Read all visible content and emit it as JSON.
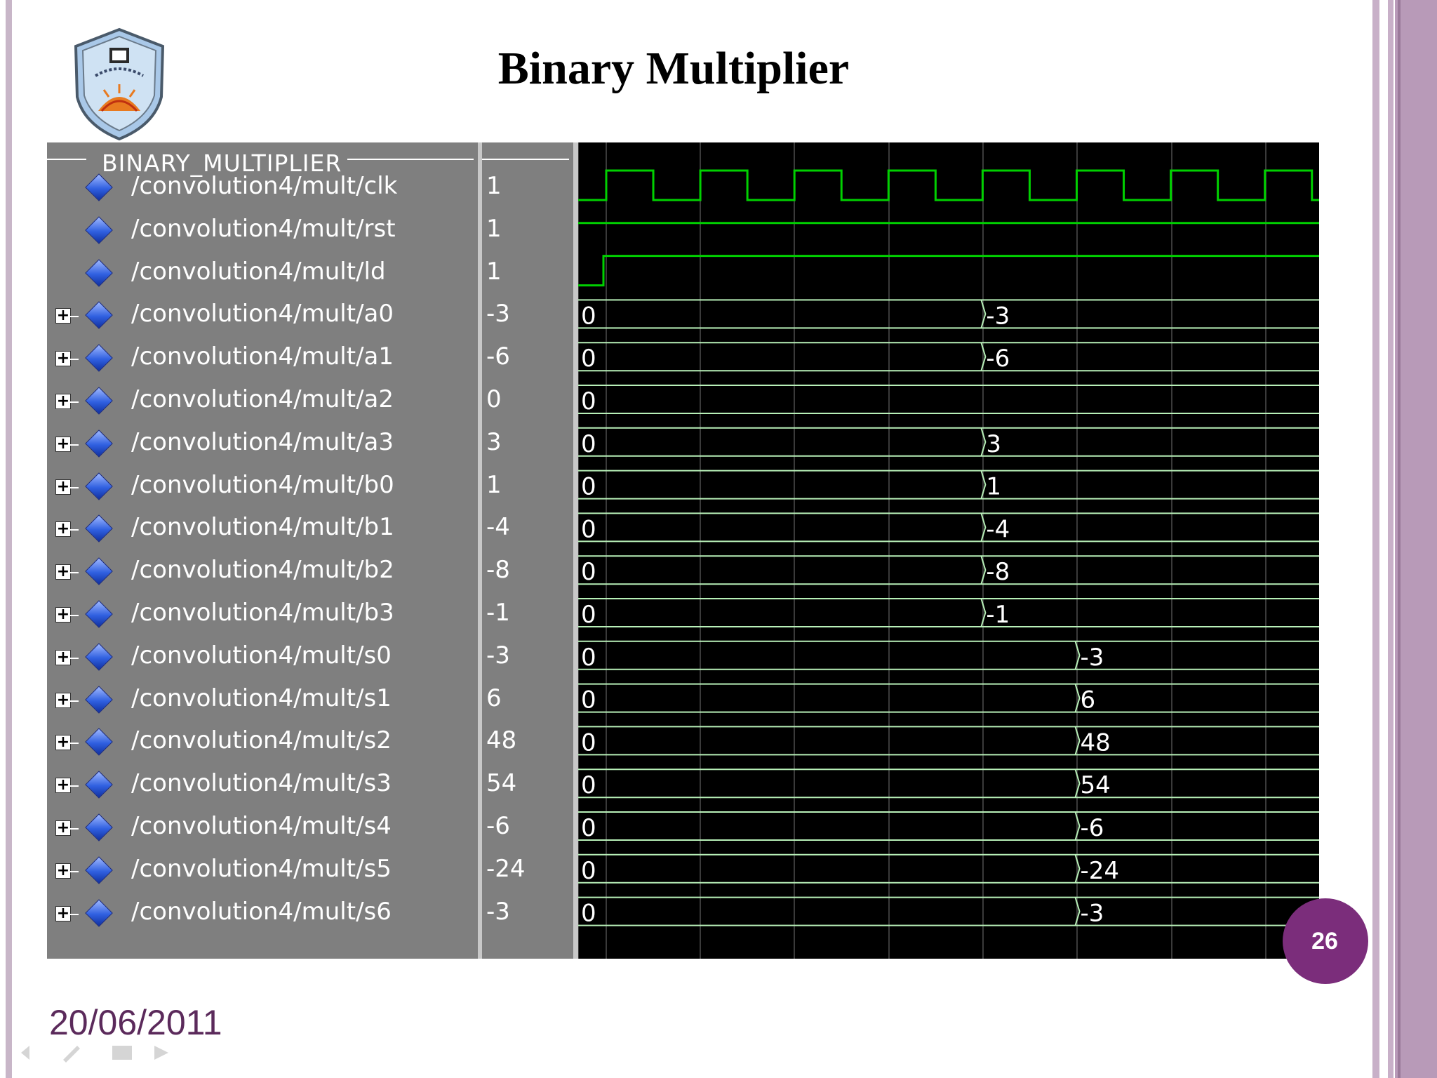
{
  "slide": {
    "title": "Binary Multiplier",
    "page_number": "26",
    "date": "20/06/2011"
  },
  "colors": {
    "accent": "#7b2d7b",
    "wave_bg": "#000000",
    "wave_green": "#00d000",
    "bus_green": "#b8f0b8",
    "pane_gray": "#7f7f7f"
  },
  "waveform": {
    "group_name": "BINARY_MULTIPLIER",
    "signals": [
      {
        "name": "/convolution4/mult/clk",
        "value": "1",
        "type": "clock"
      },
      {
        "name": "/convolution4/mult/rst",
        "value": "1",
        "type": "bit_high"
      },
      {
        "name": "/convolution4/mult/ld",
        "value": "1",
        "type": "bit_rise"
      },
      {
        "name": "/convolution4/mult/a0",
        "value": "-3",
        "type": "bus",
        "initial": "0",
        "final": "-3",
        "change_cycle": 5
      },
      {
        "name": "/convolution4/mult/a1",
        "value": "-6",
        "type": "bus",
        "initial": "0",
        "final": "-6",
        "change_cycle": 5
      },
      {
        "name": "/convolution4/mult/a2",
        "value": "0",
        "type": "bus",
        "initial": "0",
        "final": "",
        "change_cycle": null
      },
      {
        "name": "/convolution4/mult/a3",
        "value": "3",
        "type": "bus",
        "initial": "0",
        "final": "3",
        "change_cycle": 5
      },
      {
        "name": "/convolution4/mult/b0",
        "value": "1",
        "type": "bus",
        "initial": "0",
        "final": "1",
        "change_cycle": 5
      },
      {
        "name": "/convolution4/mult/b1",
        "value": "-4",
        "type": "bus",
        "initial": "0",
        "final": "-4",
        "change_cycle": 5
      },
      {
        "name": "/convolution4/mult/b2",
        "value": "-8",
        "type": "bus",
        "initial": "0",
        "final": "-8",
        "change_cycle": 5
      },
      {
        "name": "/convolution4/mult/b3",
        "value": "-1",
        "type": "bus",
        "initial": "0",
        "final": "-1",
        "change_cycle": 5
      },
      {
        "name": "/convolution4/mult/s0",
        "value": "-3",
        "type": "bus",
        "initial": "0",
        "final": "-3",
        "change_cycle": 6
      },
      {
        "name": "/convolution4/mult/s1",
        "value": "6",
        "type": "bus",
        "initial": "0",
        "final": "6",
        "change_cycle": 6
      },
      {
        "name": "/convolution4/mult/s2",
        "value": "48",
        "type": "bus",
        "initial": "0",
        "final": "48",
        "change_cycle": 6
      },
      {
        "name": "/convolution4/mult/s3",
        "value": "54",
        "type": "bus",
        "initial": "0",
        "final": "54",
        "change_cycle": 6
      },
      {
        "name": "/convolution4/mult/s4",
        "value": "-6",
        "type": "bus",
        "initial": "0",
        "final": "-6",
        "change_cycle": 6
      },
      {
        "name": "/convolution4/mult/s5",
        "value": "-24",
        "type": "bus",
        "initial": "0",
        "final": "-24",
        "change_cycle": 6
      },
      {
        "name": "/convolution4/mult/s6",
        "value": "-3",
        "type": "bus",
        "initial": "0",
        "final": "-3",
        "change_cycle": 6
      }
    ]
  }
}
